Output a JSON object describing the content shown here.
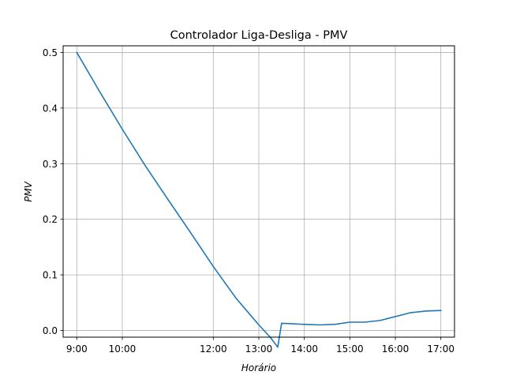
{
  "chart_data": {
    "type": "line",
    "title": "Controlador Liga-Desliga - PMV",
    "xlabel": "Horário",
    "ylabel": "PMV",
    "xlim": [
      "8:42",
      "17:18"
    ],
    "ylim": [
      -0.012,
      0.512
    ],
    "x_ticks": [
      "9:00",
      "10:00",
      "12:00",
      "13:00",
      "14:00",
      "15:00",
      "16:00",
      "17:00"
    ],
    "y_ticks": [
      "0.0",
      "0.1",
      "0.2",
      "0.3",
      "0.4",
      "0.5"
    ],
    "grid": true,
    "series": [
      {
        "color": "#1f77b4",
        "x": [
          "9:00",
          "9:30",
          "10:00",
          "10:30",
          "11:00",
          "11:30",
          "12:00",
          "12:30",
          "13:00",
          "13:15",
          "13:25",
          "13:30",
          "13:45",
          "14:00",
          "14:20",
          "14:40",
          "15:00",
          "15:20",
          "15:40",
          "16:00",
          "16:20",
          "16:40",
          "17:00"
        ],
        "y": [
          0.5,
          0.43,
          0.362,
          0.297,
          0.236,
          0.176,
          0.115,
          0.058,
          0.01,
          -0.012,
          -0.03,
          0.013,
          0.012,
          0.011,
          0.01,
          0.011,
          0.015,
          0.015,
          0.018,
          0.025,
          0.032,
          0.035,
          0.036
        ]
      }
    ]
  }
}
